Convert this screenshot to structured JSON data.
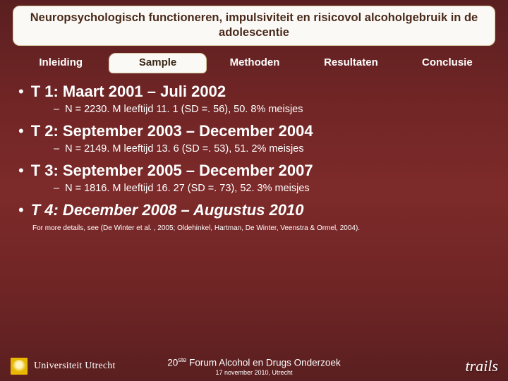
{
  "colors": {
    "slide_bg_top": "#5a1f20",
    "slide_bg_mid": "#7d2a2a",
    "title_bg": "#faf9f6",
    "title_border": "#d6c79f",
    "title_text": "#4a2a1a",
    "tab_text": "#ffffff",
    "tab_active_text": "#3a2614",
    "body_text": "#ffffff"
  },
  "title": "Neuropsychologisch functioneren, impulsiviteit en risicovol alcoholgebruik in de adolescentie",
  "tabs": [
    {
      "label": "Inleiding",
      "active": false
    },
    {
      "label": "Sample",
      "active": true
    },
    {
      "label": "Methoden",
      "active": false
    },
    {
      "label": "Resultaten",
      "active": false
    },
    {
      "label": "Conclusie",
      "active": false
    }
  ],
  "bullets": [
    {
      "heading": "T 1: Maart 2001 – Juli 2002",
      "sub": "N = 2230. M leeftijd 11. 1 (SD =. 56), 50. 8% meisjes",
      "italic": false
    },
    {
      "heading": "T 2: September 2003 – December 2004",
      "sub": "N = 2149. M leeftijd 13. 6 (SD =. 53), 51. 2% meisjes",
      "italic": false
    },
    {
      "heading": "T 3: September 2005 – December 2007",
      "sub": "N = 1816. M leeftijd 16. 27 (SD =. 73), 52. 3% meisjes",
      "italic": false
    },
    {
      "heading": "T 4: December 2008 – Augustus 2010",
      "sub": null,
      "italic": true
    }
  ],
  "footnote": "For more details, see (De Winter et al. , 2005; Oldehinkel, Hartman, De Winter, Veenstra & Ormel, 2004).",
  "footer": {
    "university": "Universiteit Utrecht",
    "center_prefix": "20",
    "center_sup": "ste",
    "center_rest": " Forum Alcohol en Drugs Onderzoek",
    "center_sub": "17 november 2010, Utrecht",
    "right": "trails"
  }
}
